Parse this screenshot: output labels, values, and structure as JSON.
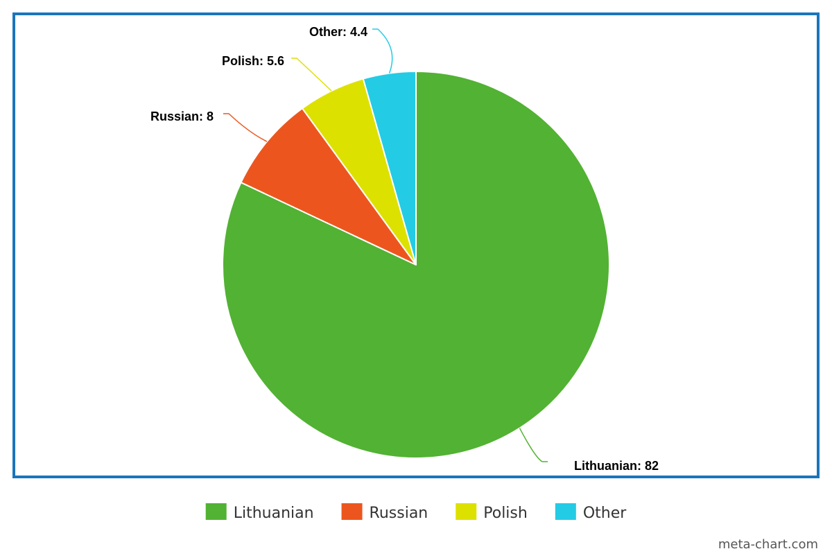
{
  "colors": {
    "border": "#1a75bc",
    "background": "#ffffff",
    "slice_stroke": "#ffffff"
  },
  "chart_data": {
    "type": "pie",
    "title": "",
    "slices": [
      {
        "label": "Lithuanian",
        "value": 82,
        "color": "#52b233",
        "data_label": "Lithuanian: 82"
      },
      {
        "label": "Russian",
        "value": 8,
        "color": "#ec561e",
        "data_label": "Russian: 8"
      },
      {
        "label": "Polish",
        "value": 5.6,
        "color": "#dde100",
        "data_label": "Polish: 5.6"
      },
      {
        "label": "Other",
        "value": 4.4,
        "color": "#24cbe5",
        "data_label": "Other: 4.4"
      }
    ],
    "start_angle": "top (12 o'clock)",
    "direction": "clockwise for Lithuanian then Russian, Polish, Other",
    "legend": {
      "placement": "bottom",
      "entries": [
        "Lithuanian",
        "Russian",
        "Polish",
        "Other"
      ]
    }
  },
  "watermark": "meta-chart.com"
}
